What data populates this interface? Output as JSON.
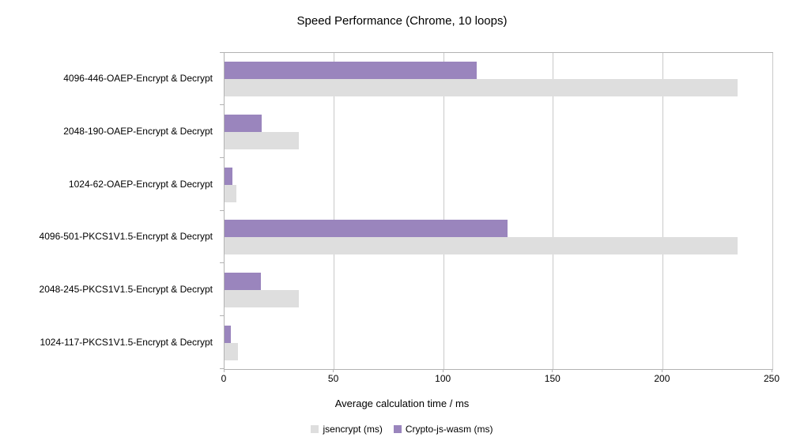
{
  "title": "Speed Performance (Chrome, 10 loops)",
  "colors": {
    "jsencrypt": "#dedede",
    "crypto_js_wasm": "#9a85bd",
    "gridline": "#c9c9c9",
    "axis": "#b2b2b2",
    "background": "#ffffff",
    "text": "#000000"
  },
  "chart_data": {
    "type": "bar",
    "orientation": "horizontal",
    "title": "Speed Performance (Chrome, 10 loops)",
    "categories": [
      "4096-446-OAEP-Encrypt & Decrypt",
      "2048-190-OAEP-Encrypt & Decrypt",
      "1024-62-OAEP-Encrypt & Decrypt",
      "4096-501-PKCS1V1.5-Encrypt & Decrypt",
      "2048-245-PKCS1V1.5-Encrypt & Decrypt",
      "1024-117-PKCS1V1.5-Encrypt & Decrypt"
    ],
    "series": [
      {
        "name": "jsencrypt (ms)",
        "color": "#dedede",
        "values": [
          234,
          34,
          5.5,
          234,
          34,
          6
        ]
      },
      {
        "name": "Crypto-js-wasm (ms)",
        "color": "#9a85bd",
        "values": [
          115,
          17,
          3.5,
          129,
          16.5,
          3
        ]
      }
    ],
    "xlabel": "Average calculation time / ms",
    "xlim": [
      0,
      250
    ],
    "xticks": [
      0,
      50,
      100,
      150,
      200,
      250
    ],
    "grid": "vertical",
    "legend_position": "bottom"
  }
}
